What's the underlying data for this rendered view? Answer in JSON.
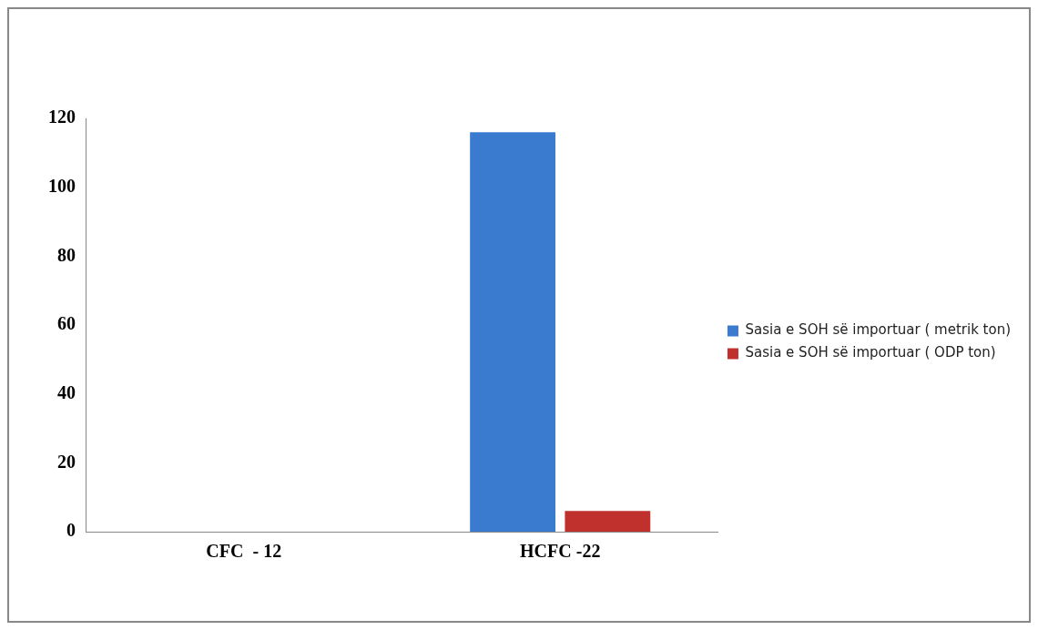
{
  "chart_data": {
    "type": "bar",
    "categories": [
      "CFC  - 12",
      "HCFC -22"
    ],
    "series": [
      {
        "name": "Sasia e SOH së importuar ( metrik ton)",
        "color": "#3a7bd0",
        "values": [
          0,
          116
        ]
      },
      {
        "name": "Sasia e SOH së importuar ( ODP ton)",
        "color": "#c0302c",
        "values": [
          0,
          6
        ]
      }
    ],
    "ylim": [
      0,
      120
    ],
    "yticks": [
      0,
      20,
      40,
      60,
      80,
      100,
      120
    ],
    "grid": false,
    "legend": "right"
  }
}
